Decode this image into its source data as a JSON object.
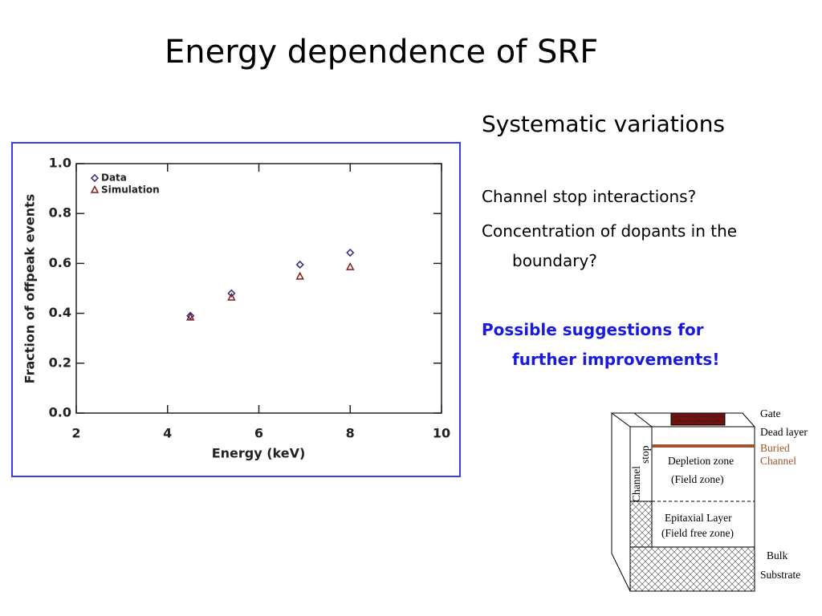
{
  "title": "Energy dependence of SRF",
  "notes": {
    "heading": "Systematic variations",
    "items": [
      "Channel stop interactions?",
      "Concentration of dopants in the boundary?"
    ],
    "highlight": "Possible suggestions for further improvements!"
  },
  "chart_data": {
    "type": "scatter",
    "x_label": "Energy (keV)",
    "y_label": "Fraction of offpeak events",
    "series": [
      {
        "name": "Data",
        "color": "#2a2a7a",
        "marker": "diamond",
        "x": [
          4.5,
          5.4,
          6.9,
          8.0
        ],
        "values": [
          0.39,
          0.48,
          0.595,
          0.643
        ]
      },
      {
        "name": "Simulation",
        "color": "#8b1a1a",
        "marker": "triangle",
        "x": [
          4.5,
          5.4,
          6.9,
          8.0
        ],
        "values": [
          0.383,
          0.463,
          0.547,
          0.585
        ]
      }
    ],
    "xlim": [
      2,
      10
    ],
    "xticks": [
      2,
      4,
      6,
      8,
      10
    ],
    "ylim": [
      0,
      1
    ],
    "yticks": [
      {
        "value": 0,
        "label": "0.0"
      },
      0.2,
      0.4,
      0.6,
      0.8,
      {
        "value": 1,
        "label": "1.0"
      }
    ],
    "legend": "upper left",
    "grid": false
  },
  "diagram": {
    "gate": "Gate",
    "dead_layer": "Dead layer",
    "buried_channel": [
      "Buried",
      "Channel"
    ],
    "channel_stop": [
      "Channel",
      "stop"
    ],
    "depletion_zone": [
      "Depletion zone",
      "(Field zone)"
    ],
    "epitaxial": [
      "Epitaxial Layer",
      "(Field free zone)"
    ],
    "bulk": [
      "Bulk",
      "Substrate"
    ]
  }
}
